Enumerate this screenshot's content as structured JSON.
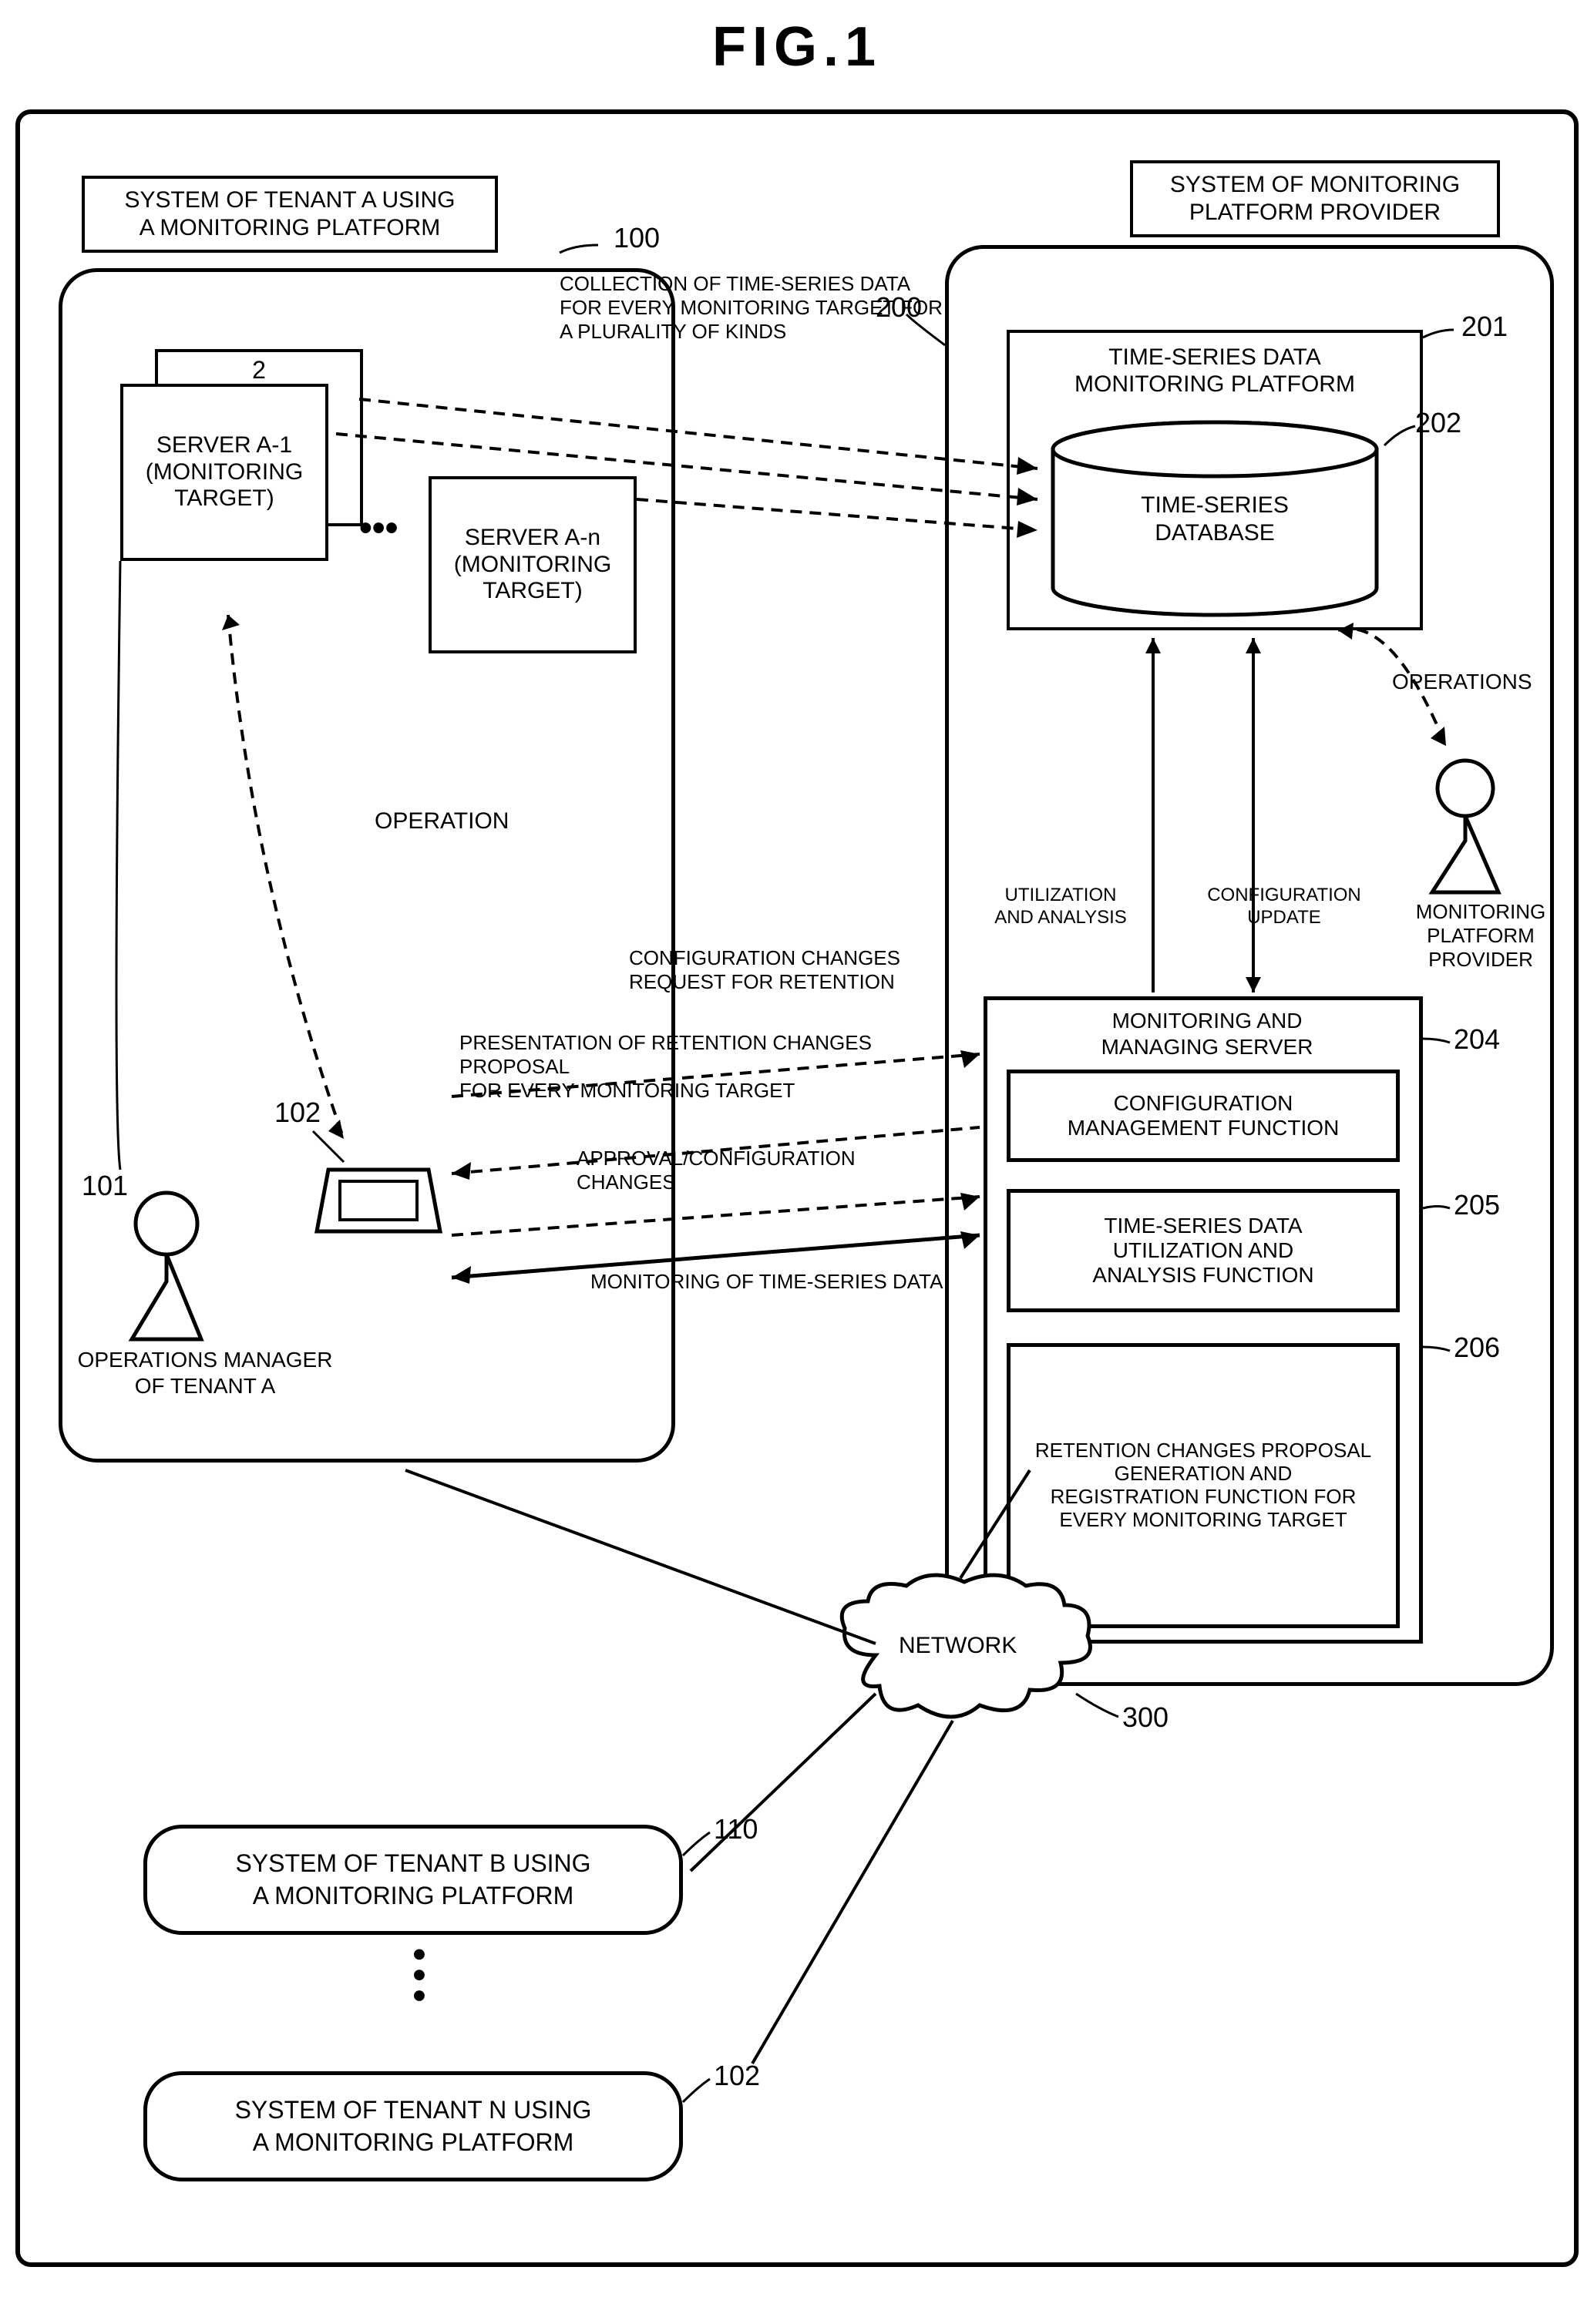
{
  "figure_title": "FIG.1",
  "tenant_a": {
    "title": "SYSTEM OF TENANT A USING\nA MONITORING PLATFORM",
    "server1": "SERVER A-1\n(MONITORING\nTARGET)",
    "server2": "2",
    "servern": "SERVER A-n\n(MONITORING\nTARGET)",
    "ref_100": "100",
    "ref_101": "101",
    "ref_102": "102",
    "operation": "OPERATION",
    "manager": "OPERATIONS MANAGER\nOF TENANT A"
  },
  "provider": {
    "title": "SYSTEM OF MONITORING\nPLATFORM PROVIDER",
    "platform": "TIME-SERIES DATA\nMONITORING PLATFORM",
    "database": "TIME-SERIES\nDATABASE",
    "ref_200": "200",
    "ref_201": "201",
    "ref_202": "202",
    "operations": "OPERATIONS",
    "provider_label": "MONITORING\nPLATFORM\nPROVIDER",
    "server_title": "MONITORING AND\nMANAGING SERVER",
    "func1": "CONFIGURATION\nMANAGEMENT FUNCTION",
    "func2": "TIME-SERIES DATA\nUTILIZATION AND\nANALYSIS FUNCTION",
    "func3": "RETENTION CHANGES PROPOSAL\nGENERATION AND\nREGISTRATION FUNCTION FOR\nEVERY MONITORING TARGET",
    "ref_204": "204",
    "ref_205": "205",
    "ref_206": "206",
    "util": "UTILIZATION\nAND ANALYSIS",
    "config": "CONFIGURATION\nUPDATE"
  },
  "annotations": {
    "collection": "COLLECTION OF TIME-SERIES DATA\nFOR EVERY MONITORING TARGET FOR\nA PLURALITY OF KINDS",
    "config_changes": "CONFIGURATION CHANGES\nREQUEST FOR RETENTION",
    "presentation": "PRESENTATION OF RETENTION CHANGES PROPOSAL\nFOR EVERY MONITORING TARGET",
    "approval": "APPROVAL/CONFIGURATION CHANGES",
    "monitoring": "MONITORING OF TIME-SERIES DATA"
  },
  "network": {
    "label": "NETWORK",
    "ref_300": "300"
  },
  "tenant_b": "SYSTEM OF TENANT B USING\nA MONITORING PLATFORM",
  "tenant_n": "SYSTEM OF TENANT N USING\nA MONITORING PLATFORM",
  "ref_110": "110",
  "ref_102b": "102"
}
